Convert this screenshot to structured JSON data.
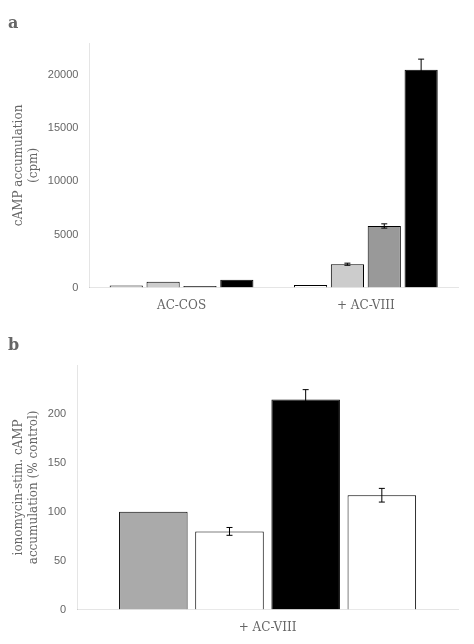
{
  "chart_data": [
    {
      "type": "bar",
      "title": "a",
      "categories": [
        "AC-COS",
        "+ AC-VIII"
      ],
      "series": [
        {
          "color": "white",
          "values": [
            200,
            250
          ],
          "errors": [
            null,
            null
          ]
        },
        {
          "color": "#cccccc",
          "values": [
            550,
            2200
          ],
          "errors": [
            null,
            100
          ]
        },
        {
          "color": "#999999",
          "values": [
            150,
            5800
          ],
          "errors": [
            null,
            200
          ]
        },
        {
          "color": "black",
          "values": [
            750,
            20500
          ],
          "errors": [
            null,
            1000
          ]
        }
      ],
      "ylabel": [
        "cAMP accumulation",
        "(cpm)"
      ],
      "ylim": [
        0,
        23000
      ],
      "yticks": [
        0,
        5000,
        10000,
        15000,
        20000
      ],
      "grid": false
    },
    {
      "type": "bar",
      "title": "b",
      "categories": [
        "+ AC-VIII"
      ],
      "series": [
        {
          "color": "#aaaaaa",
          "values": [
            100
          ],
          "errors": [
            null
          ]
        },
        {
          "color": "white",
          "values": [
            80
          ],
          "errors": [
            4
          ]
        },
        {
          "color": "black",
          "values": [
            215
          ],
          "errors": [
            10
          ]
        },
        {
          "color": "white",
          "values": [
            117
          ],
          "errors": [
            7
          ]
        }
      ],
      "ylabel": [
        "ionomycin-stim. cAMP",
        "accumulation (% control)"
      ],
      "ylim": [
        0,
        250
      ],
      "yticks": [
        0,
        50,
        100,
        150,
        200
      ],
      "grid": false
    }
  ]
}
